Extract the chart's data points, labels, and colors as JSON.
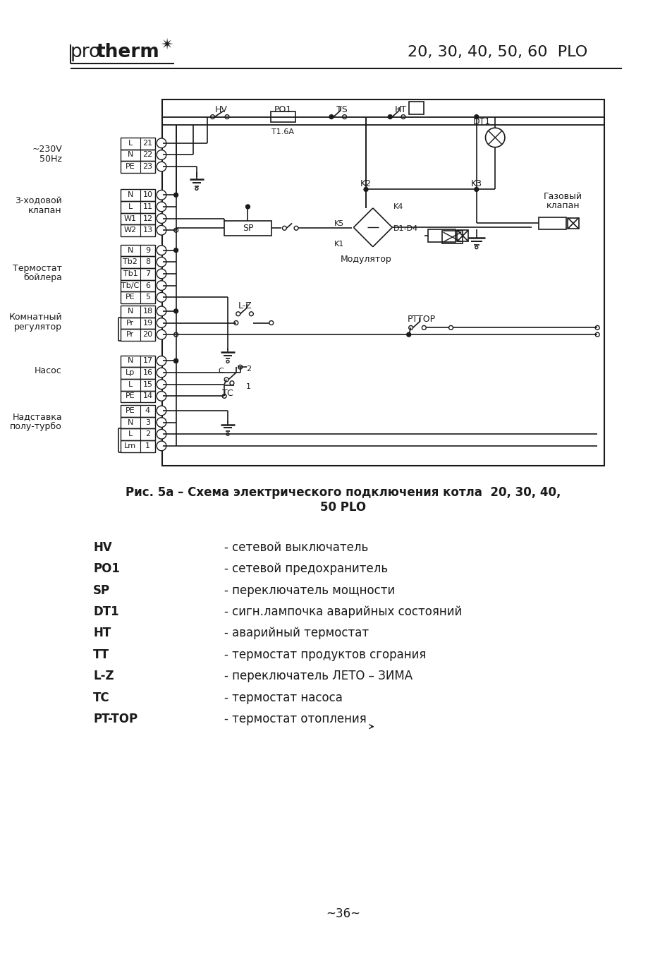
{
  "title_model": "20, 30, 40, 50, 60  PLO",
  "fig_caption_line1": "Рис. 5а – Схема электрического подключения котла  20, 30, 40,",
  "fig_caption_line2": "50 PLO",
  "legend_items": [
    [
      "HV",
      "- сетевой выключатель"
    ],
    [
      "PO1",
      "- сетевой предохранитель"
    ],
    [
      "SP",
      "- переключатель мощности"
    ],
    [
      "DT1",
      "- сигн.лампочка аварийных состояний"
    ],
    [
      "HT",
      "- аварийный термостат"
    ],
    [
      "TT",
      "- термостат продуктов сгорания"
    ],
    [
      "L-Z",
      "- переключатель ЛЕТО – ЗИМА"
    ],
    [
      "TC",
      "- термостат насоса"
    ],
    [
      "PT-TOP",
      "- термостат отопления"
    ]
  ],
  "page_number": "~36~",
  "bg_color": "#ffffff"
}
